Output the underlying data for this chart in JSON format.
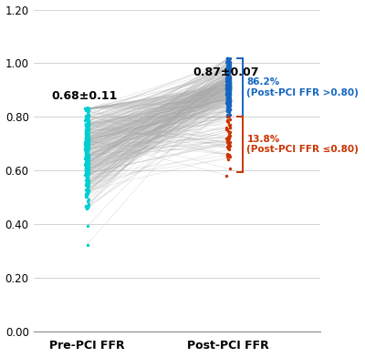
{
  "n_patients": 350,
  "pre_mean": 0.68,
  "pre_std": 0.11,
  "post_mean": 0.87,
  "post_std": 0.07,
  "threshold": 0.8,
  "pct_above": 86.2,
  "pct_below": 13.8,
  "ylim": [
    0.0,
    1.2
  ],
  "yticks": [
    0.0,
    0.2,
    0.4,
    0.6,
    0.8,
    1.0,
    1.2
  ],
  "xlabel_pre": "Pre-PCI FFR",
  "xlabel_post": "Post-PCI FFR",
  "color_pre": "#00CED1",
  "color_post_above": "#1565C0",
  "color_post_below": "#CC3300",
  "color_lines": "#AAAAAA",
  "label_above": "86.2%\n(Post-PCI FFR >0.80)",
  "label_below": "13.8%\n(Post-PCI FFR ≤0.80)",
  "pre_label": "0.68±0.11",
  "post_label": "0.87±0.07",
  "figsize": [
    4.0,
    3.92
  ],
  "dpi": 100,
  "seed": 42
}
